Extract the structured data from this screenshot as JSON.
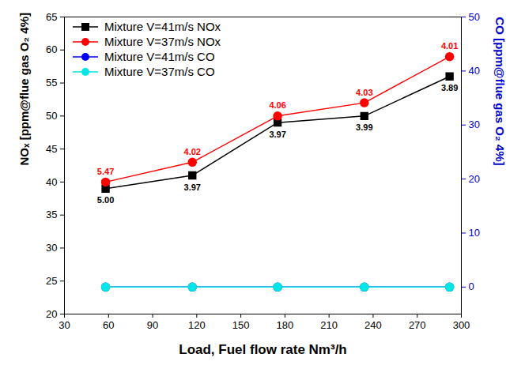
{
  "chart_data": {
    "type": "line",
    "x_label": "Load, Fuel flow rate Nm³/h",
    "y_label": "NOₓ [ppm@flue gas O₂ 4%]",
    "y2_label": "CO [ppm@flue gas O₂ 4%]",
    "x": [
      58,
      117,
      175,
      234,
      292
    ],
    "xlim": [
      30,
      300
    ],
    "xticks": [
      30,
      60,
      90,
      120,
      150,
      180,
      210,
      240,
      270,
      300
    ],
    "ylim": [
      20,
      65
    ],
    "yticks": [
      20,
      25,
      30,
      35,
      40,
      45,
      50,
      55,
      60,
      65
    ],
    "y2lim": [
      -5,
      50
    ],
    "y2ticks": [
      0,
      10,
      20,
      30,
      40,
      50
    ],
    "grid": false,
    "legend": "upper left",
    "series": [
      {
        "name": "Mixture V=41m/s NOx",
        "color": "#000000",
        "marker": "square",
        "values": [
          39,
          41,
          49,
          50,
          56
        ],
        "labels": [
          "5.00",
          "3.97",
          "3.97",
          "3.99",
          "3.89"
        ]
      },
      {
        "name": "Mixture V=37m/s NOx",
        "color": "#ff0000",
        "marker": "circle",
        "values": [
          40,
          43,
          50,
          52,
          59
        ],
        "labels": [
          "5.47",
          "4.02",
          "4.06",
          "4.03",
          "4.01"
        ]
      },
      {
        "name": "Mixture V=41m/s CO",
        "color": "#0000ff",
        "marker": "circle",
        "axis": "y2",
        "values": [
          0,
          0,
          0,
          0,
          0
        ]
      },
      {
        "name": "Mixture V=37m/s CO",
        "color": "#00e5e5",
        "marker": "circle",
        "axis": "y2",
        "values": [
          0,
          0,
          0,
          0,
          0
        ]
      }
    ]
  }
}
